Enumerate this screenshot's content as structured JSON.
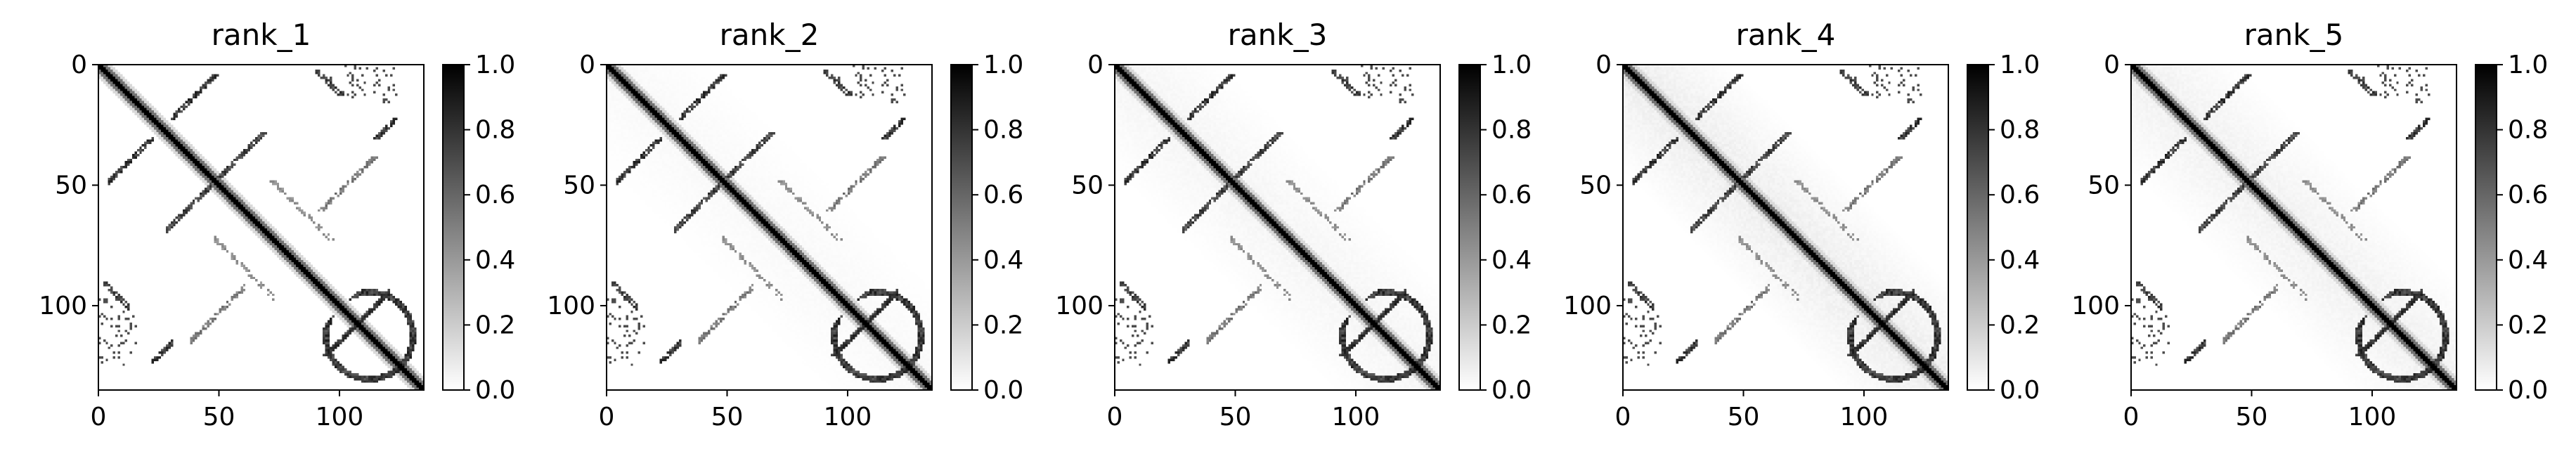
{
  "chart_data": {
    "type": "heatmap",
    "colormap": "gray_r",
    "colorbar": {
      "range": [
        0.0,
        1.0
      ],
      "ticks": [
        "0.0",
        "0.2",
        "0.4",
        "0.6",
        "0.8",
        "1.0"
      ],
      "tick_values": [
        0.0,
        0.2,
        0.4,
        0.6,
        0.8,
        1.0
      ]
    },
    "matrix_size": 135,
    "x_range": [
      0,
      135
    ],
    "y_range": [
      0,
      135
    ],
    "x_ticks": [
      "0",
      "50",
      "100"
    ],
    "y_ticks": [
      "0",
      "50",
      "100"
    ],
    "tick_values": [
      0,
      50,
      100
    ],
    "panels": [
      {
        "title": "rank_1",
        "haze": 0.0
      },
      {
        "title": "rank_2",
        "haze": 0.03
      },
      {
        "title": "rank_3",
        "haze": 0.05
      },
      {
        "title": "rank_4",
        "haze": 0.09
      },
      {
        "title": "rank_5",
        "haze": 0.07
      }
    ],
    "structure": {
      "diagonal_value": 1.0,
      "antidiagonal_bands": [
        {
          "i": [
            4,
            22
          ],
          "j_sum": 52,
          "value": 0.9
        },
        {
          "i": [
            28,
            46
          ],
          "j_sum": 96,
          "value": 0.85
        },
        {
          "i": [
            22,
            30
          ],
          "j_sum": 145,
          "value": 0.9
        },
        {
          "i": [
            96,
            120
          ],
          "j_sum": 214,
          "value": 0.9
        },
        {
          "i": [
            38,
            60
          ],
          "j_sum": 152,
          "value": 0.6
        }
      ],
      "parallel_bands": [
        {
          "i": [
            2,
            12
          ],
          "offset": 88,
          "value": 0.85
        },
        {
          "i": [
            48,
            72
          ],
          "offset": 24,
          "value": 0.5
        }
      ],
      "ring": {
        "center": [
          112,
          112
        ],
        "radius": 18,
        "value": 0.9
      }
    }
  }
}
